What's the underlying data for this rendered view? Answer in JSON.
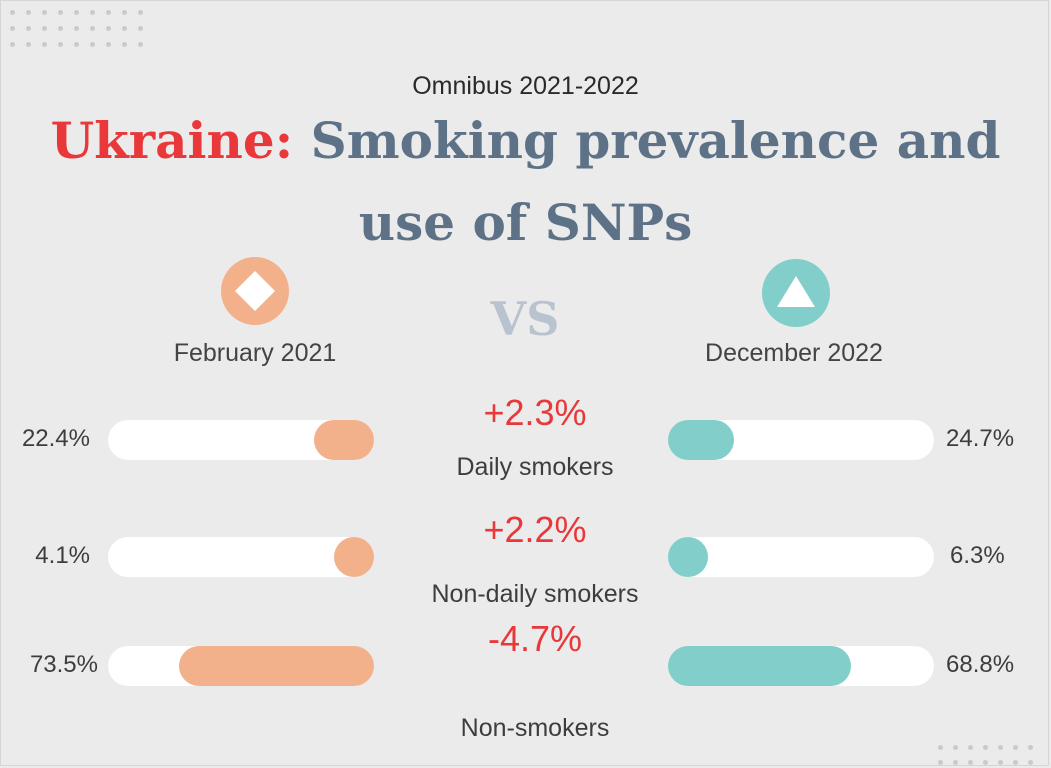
{
  "header": {
    "subtitle": "Omnibus 2021-2022",
    "country": "Ukraine:",
    "title": "Smoking prevalence and use of SNPs"
  },
  "periods": {
    "left": {
      "label": "February 2021",
      "icon": "diamond-icon",
      "color": "#f3b18b"
    },
    "vs": "VS",
    "right": {
      "label": "December 2022",
      "icon": "triangle-icon",
      "color": "#81ceca"
    }
  },
  "chart_data": {
    "type": "bar",
    "categories": [
      "Daily smokers",
      "Non-daily smokers",
      "Non-smokers"
    ],
    "series": [
      {
        "name": "February 2021",
        "values": [
          22.4,
          4.1,
          73.5
        ],
        "labels": [
          "22.4%",
          "4.1%",
          "73.5%"
        ],
        "color": "#f3b18b"
      },
      {
        "name": "December 2022",
        "values": [
          24.7,
          6.3,
          68.8
        ],
        "labels": [
          "24.7%",
          "6.3%",
          "68.8%"
        ],
        "color": "#81ceca"
      }
    ],
    "changes": [
      "+2.3%",
      "+2.2%",
      "-4.7%"
    ],
    "title": "Ukraine: Smoking prevalence and use of SNPs",
    "ylim": [
      0,
      100
    ],
    "legend": "top",
    "change_color": "#e8383a"
  }
}
